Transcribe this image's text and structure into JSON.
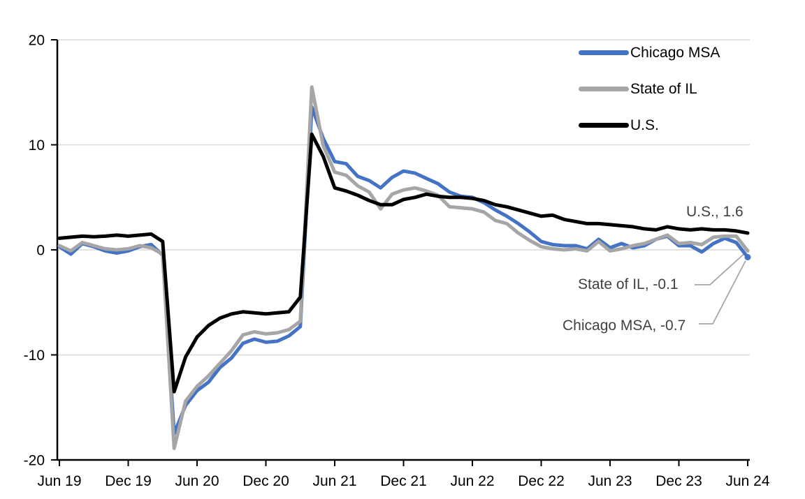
{
  "chart_data": {
    "type": "line",
    "title": "",
    "xlabel": "",
    "ylabel": "",
    "x_start": "Jun 19",
    "x_end": "Jun 24",
    "x_frequency": "monthly",
    "x_tick_labels": [
      "Jun 19",
      "Dec 19",
      "Jun 20",
      "Dec 20",
      "Jun 21",
      "Dec 21",
      "Jun 22",
      "Dec 22",
      "Jun 23",
      "Dec 23",
      "Jun 24"
    ],
    "y_ticks": [
      20,
      10,
      0,
      -10,
      -20
    ],
    "ylim": [
      -20,
      20
    ],
    "grid": "horizontal",
    "gridline_color": "#D9D9D9",
    "axis_color": "#000000",
    "background_color": "#FFFFFF",
    "legend_position": "top-right",
    "series": [
      {
        "name": "Chicago MSA",
        "color": "#4472C4",
        "last_value_label": -0.7,
        "values": [
          0.3,
          -0.4,
          0.6,
          0.3,
          -0.1,
          -0.3,
          -0.1,
          0.3,
          0.5,
          -0.5,
          -17.5,
          -14.8,
          -13.4,
          -12.6,
          -11.2,
          -10.3,
          -8.9,
          -8.5,
          -8.8,
          -8.7,
          -8.2,
          -7.3,
          13.6,
          10.6,
          8.4,
          8.2,
          7.0,
          6.6,
          5.9,
          6.9,
          7.5,
          7.3,
          6.8,
          6.3,
          5.5,
          5.1,
          5.0,
          4.5,
          3.8,
          3.2,
          2.5,
          1.7,
          0.8,
          0.5,
          0.4,
          0.4,
          0.1,
          1.0,
          0.2,
          0.6,
          0.2,
          0.4,
          1.0,
          1.3,
          0.4,
          0.4,
          -0.2,
          0.6,
          1.1,
          0.7,
          -0.7
        ]
      },
      {
        "name": "State of IL",
        "color": "#A6A6A6",
        "last_value_label": -0.1,
        "values": [
          0.4,
          -0.1,
          0.7,
          0.4,
          0.1,
          0.0,
          0.1,
          0.4,
          0.2,
          -0.4,
          -18.9,
          -14.4,
          -13.0,
          -12.0,
          -10.8,
          -9.6,
          -8.1,
          -7.8,
          -8.0,
          -7.9,
          -7.6,
          -6.8,
          15.5,
          9.9,
          7.4,
          7.1,
          6.1,
          5.5,
          3.9,
          5.3,
          5.7,
          5.9,
          5.6,
          5.2,
          4.1,
          4.0,
          3.9,
          3.6,
          2.8,
          2.5,
          1.6,
          0.9,
          0.3,
          0.1,
          0.0,
          0.1,
          -0.1,
          0.8,
          -0.1,
          0.1,
          0.4,
          0.6,
          1.0,
          1.4,
          0.6,
          0.7,
          0.5,
          1.2,
          1.3,
          1.3,
          -0.1
        ]
      },
      {
        "name": "U.S.",
        "color": "#000000",
        "last_value_label": 1.6,
        "values": [
          1.1,
          1.2,
          1.3,
          1.25,
          1.3,
          1.4,
          1.3,
          1.4,
          1.5,
          0.8,
          -13.5,
          -10.2,
          -8.3,
          -7.2,
          -6.5,
          -6.1,
          -5.9,
          -6.0,
          -6.1,
          -6.0,
          -5.9,
          -4.5,
          11.0,
          8.9,
          5.9,
          5.6,
          5.2,
          4.7,
          4.3,
          4.3,
          4.8,
          5.0,
          5.3,
          5.1,
          5.0,
          5.0,
          4.9,
          4.7,
          4.3,
          4.1,
          3.8,
          3.5,
          3.2,
          3.3,
          2.9,
          2.7,
          2.5,
          2.5,
          2.4,
          2.3,
          2.2,
          2.0,
          1.9,
          2.2,
          2.0,
          1.9,
          2.0,
          1.9,
          1.9,
          1.8,
          1.6
        ]
      }
    ],
    "annotations": [
      {
        "text": "U.S., 1.6",
        "series": "U.S."
      },
      {
        "text": "State of IL, -0.1",
        "series": "State of IL"
      },
      {
        "text": "Chicago MSA, -0.7",
        "series": "Chicago MSA"
      }
    ],
    "annotation_text_color": "#404040",
    "leader_line_color": "#A6A6A6"
  }
}
